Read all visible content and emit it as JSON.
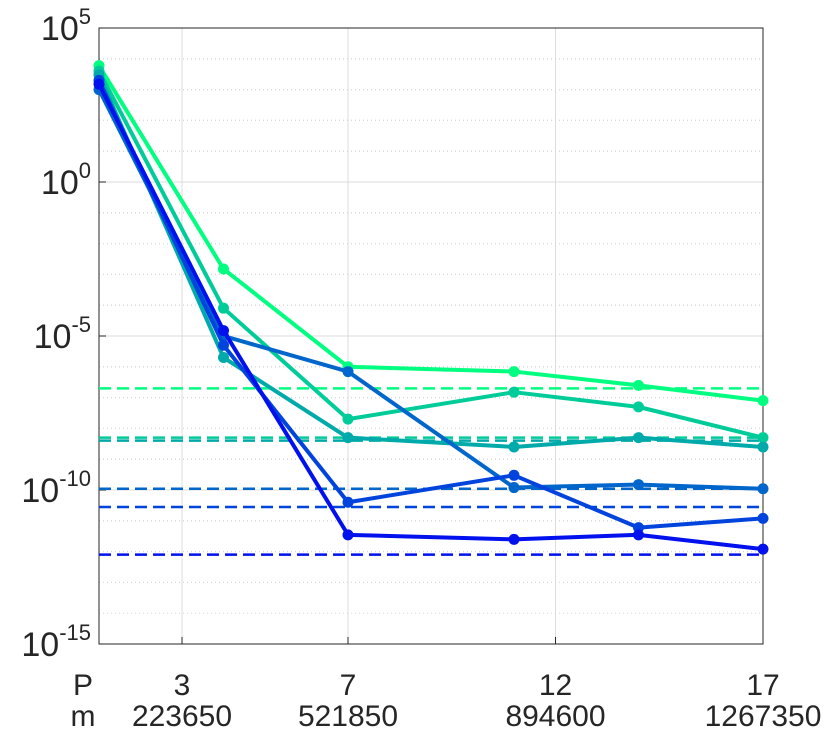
{
  "chart_data": {
    "type": "line",
    "title": "",
    "xlabel": "",
    "ylabel": "",
    "yscale": "log",
    "xlim": [
      1,
      17
    ],
    "ylim": [
      1e-15,
      100000.0
    ],
    "grid": true,
    "minor_grid_y": true,
    "xaxis_rows": [
      {
        "label": "P",
        "ticks": [
          3,
          7,
          12,
          17
        ],
        "tick_labels": [
          "3",
          "7",
          "12",
          "17"
        ]
      },
      {
        "label": "m",
        "ticks": [
          3,
          7,
          12,
          17
        ],
        "tick_labels": [
          "223650",
          "521850",
          "894600",
          "1267350"
        ]
      }
    ],
    "yticks": [
      {
        "base": "10",
        "exp": "5",
        "value": 100000.0
      },
      {
        "base": "10",
        "exp": "0",
        "value": 1
      },
      {
        "base": "10",
        "exp": "-5",
        "value": 1e-05
      },
      {
        "base": "10",
        "exp": "-10",
        "value": 1e-10
      },
      {
        "base": "10",
        "exp": "-15",
        "value": 1e-15
      }
    ],
    "x": [
      1,
      4,
      7,
      11,
      14,
      17
    ],
    "series": [
      {
        "color": "#00ff80",
        "values": [
          6000.0,
          0.0015,
          1e-06,
          7e-07,
          2.5e-07,
          8e-08
        ],
        "reference": 2e-07
      },
      {
        "color": "#00cc99",
        "values": [
          4000.0,
          8e-05,
          2e-08,
          1.5e-07,
          5e-08,
          5e-09
        ],
        "reference": 5e-09
      },
      {
        "color": "#00aaaa",
        "values": [
          3000.0,
          2e-06,
          5e-09,
          2.5e-09,
          5e-09,
          2.5e-09
        ],
        "reference": 4e-09
      },
      {
        "color": "#0066cc",
        "values": [
          1000.0,
          1e-05,
          7e-07,
          1.2e-10,
          1.5e-10,
          1.1e-10
        ],
        "reference": 1.1e-10
      },
      {
        "color": "#0044dd",
        "values": [
          2000.0,
          5e-06,
          4e-11,
          3e-10,
          6e-12,
          1.2e-11
        ],
        "reference": 2.8e-11
      },
      {
        "color": "#0011ee",
        "values": [
          1500.0,
          1.5e-05,
          3.5e-12,
          2.5e-12,
          3.5e-12,
          1.2e-12
        ],
        "reference": 8e-13
      }
    ]
  }
}
